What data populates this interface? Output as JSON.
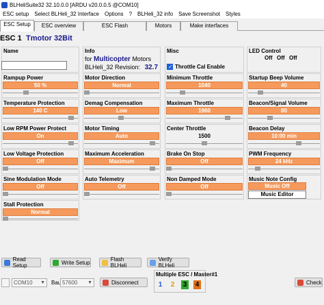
{
  "window": {
    "title": "BLHeliSuite32 32.10.0.0  [ARDU v20.0.0.5 @COM10]"
  },
  "menu": [
    "ESC setup",
    "Select BLHeli_32 Interface",
    "Options",
    "?",
    "BLHeli_32 info",
    "Save Screenshot",
    "Styles"
  ],
  "tabs": [
    "ESC Setup",
    "ESC overview",
    "ESC Flash",
    "Motors",
    "Make interfaces"
  ],
  "esc": {
    "label": "ESC 1",
    "name": "Tmotor 32Bit"
  },
  "name_field": {
    "label": "Name",
    "value": ""
  },
  "info": {
    "label": "Info",
    "for_text": "for",
    "type": "Multicopter",
    "motors_text": "Motors",
    "revision_label": "BLHeli_32 Revision:",
    "revision": "32.7"
  },
  "misc": {
    "label": "Misc",
    "checkbox_label": "Throttle Cal Enable",
    "checked": true
  },
  "led": {
    "label": "LED Control",
    "values": [
      "Off",
      "Off",
      "Off"
    ]
  },
  "params": {
    "rampup": {
      "label": "Rampup Power",
      "value": "50 %"
    },
    "direction": {
      "label": "Motor Direction",
      "value": "Normal"
    },
    "min_throttle": {
      "label": "Minimum Throttle",
      "value": "1040"
    },
    "beep_volume": {
      "label": "Startup Beep Volume",
      "value": "40"
    },
    "temp": {
      "label": "Temperature Protection",
      "value": "140 C"
    },
    "demag": {
      "label": "Demag Compensation",
      "value": "Low"
    },
    "max_throttle": {
      "label": "Maximum Throttle",
      "value": "1960"
    },
    "beacon_volume": {
      "label": "Beacon/Signal Volume",
      "value": "80"
    },
    "low_rpm": {
      "label": "Low RPM Power Protect",
      "value": "On"
    },
    "timing": {
      "label": "Motor Timing",
      "value": "Auto"
    },
    "center_throttle": {
      "label": "Center Throttle",
      "value": "1500"
    },
    "beacon_delay": {
      "label": "Beacon Delay",
      "value": "10:00 min"
    },
    "low_voltage": {
      "label": "Low Voltage Protection",
      "value": "Off"
    },
    "max_accel": {
      "label": "Maximum Acceleration",
      "value": "Maximum"
    },
    "brake": {
      "label": "Brake On Stop",
      "value": "Off"
    },
    "pwm": {
      "label": "PWM Frequency",
      "value": "24 kHz"
    },
    "sine": {
      "label": "Sine Modulation Mode",
      "value": "Off"
    },
    "telemetry": {
      "label": "Auto Telemetry",
      "value": "Off"
    },
    "damped": {
      "label": "Non Damped Mode",
      "value": "Off"
    },
    "music": {
      "label": "Music Note Config",
      "value": "Music Off",
      "editor": "Music Editor"
    },
    "stall": {
      "label": "Stall Protection",
      "value": "Normal"
    }
  },
  "buttons": {
    "read": "Read Setup",
    "write": "Write Setup",
    "flash": "Flash BLHeli",
    "verify": "Verify BLHeli",
    "disconnect": "Disconnect",
    "check": "Check"
  },
  "connection": {
    "port": "COM10",
    "baud_label": "Baud:",
    "baud": "57600"
  },
  "multi": {
    "label": "Multiple ESC / Master#1",
    "escs": [
      "1",
      "2",
      "3",
      "4"
    ]
  },
  "colors": {
    "orange": "#f59a5c",
    "esc1": "#1d5fd1",
    "esc2": "#d7a000",
    "esc3": "#2ea82e",
    "esc4": "#e0701a"
  }
}
